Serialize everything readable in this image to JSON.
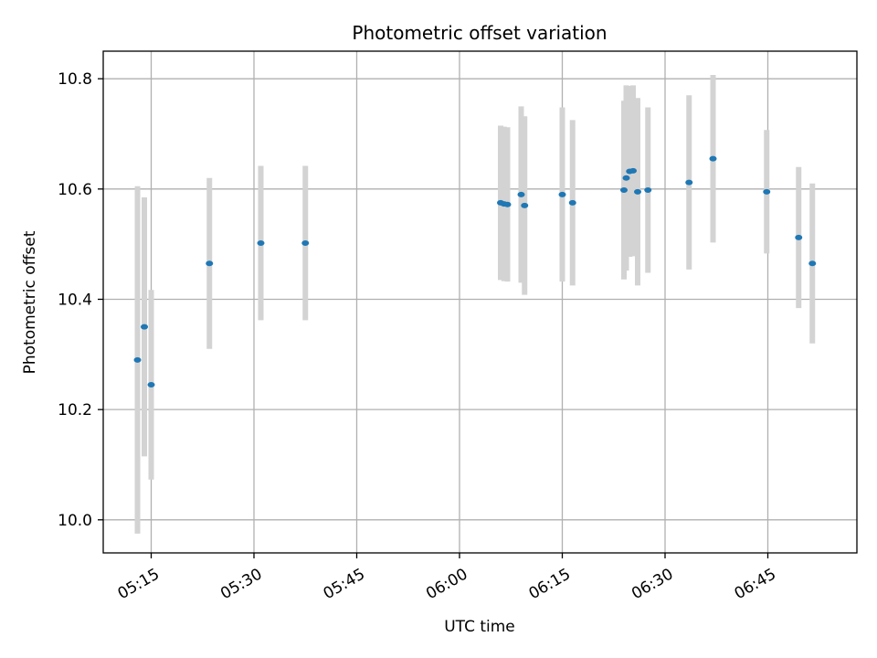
{
  "chart_data": {
    "type": "scatter",
    "title": "Photometric offset variation",
    "xlabel": "UTC time",
    "ylabel": "Photometric offset",
    "x_axis": {
      "kind": "time",
      "range": [
        "05:08",
        "06:58"
      ],
      "ticks": [
        "05:15",
        "05:30",
        "05:45",
        "06:00",
        "06:15",
        "06:30",
        "06:45"
      ],
      "tick_label_rotation": "30 degrees"
    },
    "y_axis": {
      "range": [
        9.94,
        10.85
      ],
      "ticks": [
        10.0,
        10.2,
        10.4,
        10.6,
        10.8
      ],
      "tick_labels": [
        "10.0",
        "10.2",
        "10.4",
        "10.6",
        "10.8"
      ]
    },
    "grid": true,
    "legend": "none",
    "colors": {
      "point": "#1f77b4",
      "errorbar": "#d3d3d3",
      "grid": "#b0b0b0"
    },
    "series": [
      {
        "points": [
          {
            "x": "05:13:00",
            "y": 10.29,
            "err": 0.315
          },
          {
            "x": "05:14:00",
            "y": 10.35,
            "err": 0.235
          },
          {
            "x": "05:15:00",
            "y": 10.245,
            "err": 0.172
          },
          {
            "x": "05:23:30",
            "y": 10.465,
            "err": 0.155
          },
          {
            "x": "05:31:00",
            "y": 10.502,
            "err": 0.14
          },
          {
            "x": "05:37:30",
            "y": 10.502,
            "err": 0.14
          },
          {
            "x": "06:06:00",
            "y": 10.575,
            "err": 0.14
          },
          {
            "x": "06:06:30",
            "y": 10.573,
            "err": 0.14
          },
          {
            "x": "06:07:00",
            "y": 10.572,
            "err": 0.14
          },
          {
            "x": "06:09:00",
            "y": 10.59,
            "err": 0.16
          },
          {
            "x": "06:09:30",
            "y": 10.57,
            "err": 0.162
          },
          {
            "x": "06:15:00",
            "y": 10.59,
            "err": 0.158
          },
          {
            "x": "06:16:30",
            "y": 10.575,
            "err": 0.15
          },
          {
            "x": "06:24:00",
            "y": 10.598,
            "err": 0.162
          },
          {
            "x": "06:24:20",
            "y": 10.62,
            "err": 0.168
          },
          {
            "x": "06:24:50",
            "y": 10.632,
            "err": 0.155
          },
          {
            "x": "06:25:20",
            "y": 10.633,
            "err": 0.155
          },
          {
            "x": "06:26:00",
            "y": 10.595,
            "err": 0.17
          },
          {
            "x": "06:27:30",
            "y": 10.598,
            "err": 0.15
          },
          {
            "x": "06:33:30",
            "y": 10.612,
            "err": 0.158
          },
          {
            "x": "06:37:00",
            "y": 10.655,
            "err": 0.152
          },
          {
            "x": "06:44:50",
            "y": 10.595,
            "err": 0.112
          },
          {
            "x": "06:49:30",
            "y": 10.512,
            "err": 0.128
          },
          {
            "x": "06:51:30",
            "y": 10.465,
            "err": 0.145
          }
        ]
      }
    ]
  }
}
